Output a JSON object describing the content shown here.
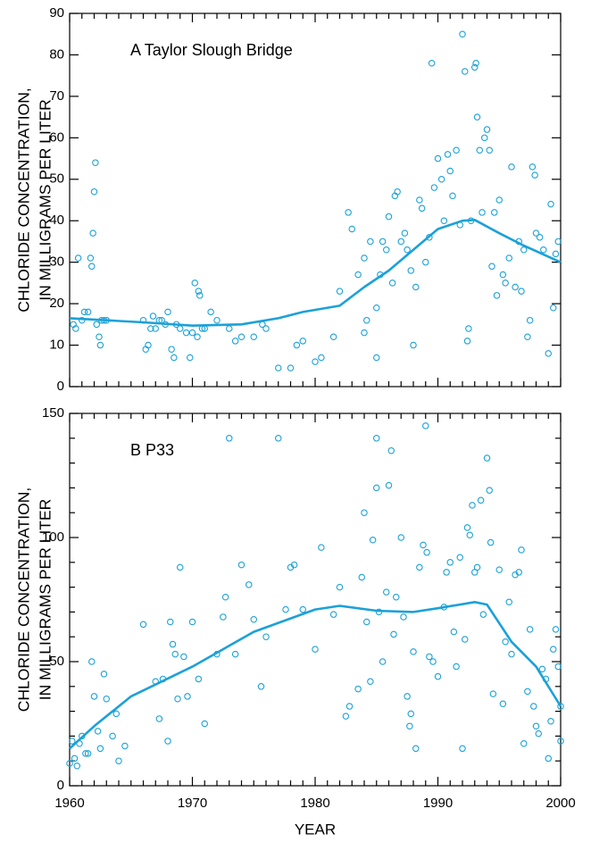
{
  "chart_data": [
    {
      "type": "scatter",
      "title": "A  Taylor Slough Bridge",
      "color": "#1ba1d8",
      "ylabel": [
        "CHLORIDE CONCENTRATION,",
        "IN MILLIGRAMS PER LITER"
      ],
      "xlim": [
        1960,
        2000
      ],
      "ylim": [
        0,
        90
      ],
      "xticks": [
        1960,
        1970,
        1980,
        1990,
        2000
      ],
      "xtick_labels": false,
      "xminorticks": [
        1961,
        1962,
        1963,
        1964,
        1965,
        1966,
        1967,
        1968,
        1969,
        1971,
        1972,
        1973,
        1974,
        1975,
        1976,
        1977,
        1978,
        1979,
        1981,
        1982,
        1983,
        1984,
        1985,
        1986,
        1987,
        1988,
        1989,
        1991,
        1992,
        1993,
        1994,
        1995,
        1996,
        1997,
        1998,
        1999
      ],
      "yticks": [
        0,
        10,
        20,
        30,
        40,
        50,
        60,
        70,
        80,
        90
      ],
      "yminorticks": [],
      "x": [
        1960.3,
        1960.5,
        1960.7,
        1961,
        1961.2,
        1961.5,
        1961.7,
        1961.8,
        1961.9,
        1962,
        1962.1,
        1962.2,
        1962.4,
        1962.5,
        1962.6,
        1962.8,
        1963,
        1966,
        1966.2,
        1966.4,
        1966.6,
        1966.8,
        1967,
        1967.3,
        1967.5,
        1967.8,
        1968,
        1968.3,
        1968.5,
        1968.7,
        1969,
        1969.5,
        1969.8,
        1970,
        1970.2,
        1970.4,
        1970.5,
        1970.6,
        1970.8,
        1971,
        1971.5,
        1972,
        1973,
        1973.5,
        1974,
        1975,
        1975.7,
        1976,
        1977,
        1978,
        1978.5,
        1979,
        1980,
        1980.5,
        1981.5,
        1982,
        1982.7,
        1983,
        1983.5,
        1984,
        1984,
        1984.2,
        1984.5,
        1985,
        1985,
        1985.3,
        1985.5,
        1985.8,
        1986,
        1986.3,
        1986.5,
        1986.7,
        1987,
        1987.3,
        1987.5,
        1987.8,
        1988,
        1988.2,
        1988.5,
        1988.7,
        1989,
        1989.3,
        1989.5,
        1989.7,
        1990,
        1990.3,
        1990.5,
        1990.8,
        1991,
        1991.2,
        1991.5,
        1991.8,
        1992,
        1992.2,
        1992.4,
        1992.5,
        1992.7,
        1993,
        1993.1,
        1993.2,
        1993.4,
        1993.6,
        1993.8,
        1994,
        1994.2,
        1994.4,
        1994.6,
        1994.8,
        1995,
        1995.3,
        1995.5,
        1995.8,
        1996,
        1996.3,
        1996.6,
        1996.8,
        1997,
        1997.3,
        1997.5,
        1997.7,
        1997.9,
        1998,
        1998.3,
        1998.6,
        1999,
        1999.2,
        1999.4,
        1999.6,
        1999.8
      ],
      "values": [
        15,
        14,
        31,
        16,
        18,
        18,
        31,
        29,
        37,
        47,
        54,
        15,
        12,
        10,
        16,
        16,
        16,
        16,
        9,
        10,
        14,
        17,
        14,
        16,
        16,
        15,
        18,
        9,
        7,
        15,
        14,
        13,
        7,
        13,
        25,
        12,
        23,
        22,
        14,
        14,
        18,
        16,
        14,
        11,
        12,
        12,
        15,
        14,
        4.5,
        4.5,
        10,
        11,
        6,
        7,
        12,
        23,
        42,
        38,
        27,
        31,
        13,
        16,
        35,
        7,
        19,
        27,
        35,
        33,
        41,
        25,
        46,
        47,
        35,
        37,
        33,
        28,
        10,
        24,
        45,
        43,
        30,
        36,
        78,
        48,
        55,
        50,
        40,
        56,
        52,
        46,
        57,
        39,
        85,
        76,
        11,
        14,
        40,
        77,
        78,
        65,
        57,
        42,
        60,
        62,
        57,
        29,
        42,
        22,
        45,
        27,
        25,
        31,
        53,
        24,
        35,
        23,
        33,
        12,
        16,
        53,
        51,
        37,
        36,
        33,
        8,
        44,
        19,
        32,
        35
      ],
      "trend_x": [
        1960,
        1963,
        1966,
        1970,
        1974,
        1977,
        1979,
        1982,
        1984,
        1986,
        1988,
        1990,
        1992,
        1993,
        1995,
        1997,
        2000
      ],
      "trend_values": [
        16.5,
        16,
        15.5,
        14.7,
        15,
        16.5,
        18,
        19.5,
        24,
        28,
        33,
        38,
        40,
        40.2,
        37,
        34,
        30
      ]
    },
    {
      "type": "scatter",
      "title": "B  P33",
      "color": "#1ba1d8",
      "ylabel": [
        "CHLORIDE CONCENTRATION,",
        "IN MILLIGRAMS PER LITER"
      ],
      "xlabel": "YEAR",
      "xlim": [
        1960,
        2000
      ],
      "ylim": [
        0,
        150
      ],
      "xticks": [
        1960,
        1970,
        1980,
        1990,
        2000
      ],
      "xtick_labels": true,
      "xminorticks": [
        1961,
        1962,
        1963,
        1964,
        1965,
        1966,
        1967,
        1968,
        1969,
        1971,
        1972,
        1973,
        1974,
        1975,
        1976,
        1977,
        1978,
        1979,
        1981,
        1982,
        1983,
        1984,
        1985,
        1986,
        1987,
        1988,
        1989,
        1991,
        1992,
        1993,
        1994,
        1995,
        1996,
        1997,
        1998,
        1999
      ],
      "yticks": [
        0,
        50,
        100,
        150
      ],
      "yminorticks": [
        10,
        20,
        30,
        40,
        60,
        70,
        80,
        90,
        110,
        120,
        130,
        140
      ],
      "x": [
        1960,
        1960.2,
        1960.4,
        1960.6,
        1960.8,
        1961,
        1961.3,
        1961.5,
        1961.8,
        1962,
        1962.3,
        1962.5,
        1962.8,
        1963,
        1963.5,
        1963.8,
        1964,
        1964.5,
        1966,
        1967,
        1967.3,
        1967.6,
        1968,
        1968.2,
        1968.4,
        1968.6,
        1968.8,
        1969,
        1969.3,
        1969.6,
        1970,
        1970.5,
        1971,
        1972,
        1972.5,
        1972.7,
        1973,
        1973.5,
        1974,
        1974.6,
        1975,
        1975.6,
        1976,
        1977,
        1977.6,
        1978,
        1978.3,
        1979,
        1980,
        1980.5,
        1981.5,
        1982,
        1982.5,
        1982.8,
        1983.5,
        1983.8,
        1984,
        1984.2,
        1984.5,
        1984.7,
        1985,
        1985,
        1985.2,
        1985.5,
        1985.8,
        1986,
        1986.2,
        1986.4,
        1986.6,
        1987,
        1987.2,
        1987.5,
        1987.7,
        1987.8,
        1988,
        1988.2,
        1988.5,
        1988.8,
        1989,
        1989.1,
        1989.3,
        1989.6,
        1990,
        1990.5,
        1990.7,
        1991,
        1991.3,
        1991.5,
        1991.8,
        1992,
        1992.2,
        1992.4,
        1992.6,
        1992.8,
        1993,
        1993.2,
        1993.5,
        1993.7,
        1994,
        1994.2,
        1994.3,
        1994.5,
        1995,
        1995.3,
        1995.5,
        1995.8,
        1996,
        1996.3,
        1996.6,
        1996.8,
        1997,
        1997.3,
        1997.5,
        1997.8,
        1998,
        1998.2,
        1998.5,
        1998.8,
        1999,
        1999.2,
        1999.4,
        1999.6,
        1999.8,
        2000,
        2000
      ],
      "values": [
        9,
        18,
        11,
        8,
        17,
        20,
        13,
        13,
        50,
        36,
        22,
        15,
        45,
        35,
        20,
        29,
        10,
        16,
        65,
        42,
        27,
        43,
        18,
        66,
        57,
        53,
        35,
        88,
        52,
        36,
        66,
        43,
        25,
        53,
        68,
        76,
        140,
        53,
        89,
        81,
        67,
        40,
        60,
        140,
        71,
        88,
        89,
        71,
        55,
        96,
        69,
        80,
        28,
        32,
        39,
        84,
        110,
        66,
        42,
        99,
        120,
        140,
        70,
        50,
        78,
        121,
        135,
        61,
        76,
        100,
        68,
        36,
        24,
        29,
        54,
        15,
        88,
        97,
        145,
        94,
        52,
        50,
        44,
        72,
        86,
        90,
        62,
        48,
        92,
        15,
        59,
        104,
        101,
        113,
        86,
        88,
        115,
        69,
        132,
        119,
        98,
        37,
        87,
        33,
        58,
        74,
        53,
        85,
        86,
        95,
        17,
        38,
        63,
        32,
        24,
        21,
        47,
        43,
        11,
        26,
        55,
        63,
        48,
        32,
        18
      ],
      "trend_x": [
        1960,
        1962,
        1965,
        1970,
        1975,
        1980,
        1982,
        1985,
        1988,
        1990,
        1993,
        1994,
        1996,
        1998,
        2000
      ],
      "trend_values": [
        15,
        24,
        36,
        48,
        62,
        71,
        72.5,
        70.5,
        70,
        71.5,
        74,
        73,
        58,
        48,
        32
      ]
    }
  ]
}
